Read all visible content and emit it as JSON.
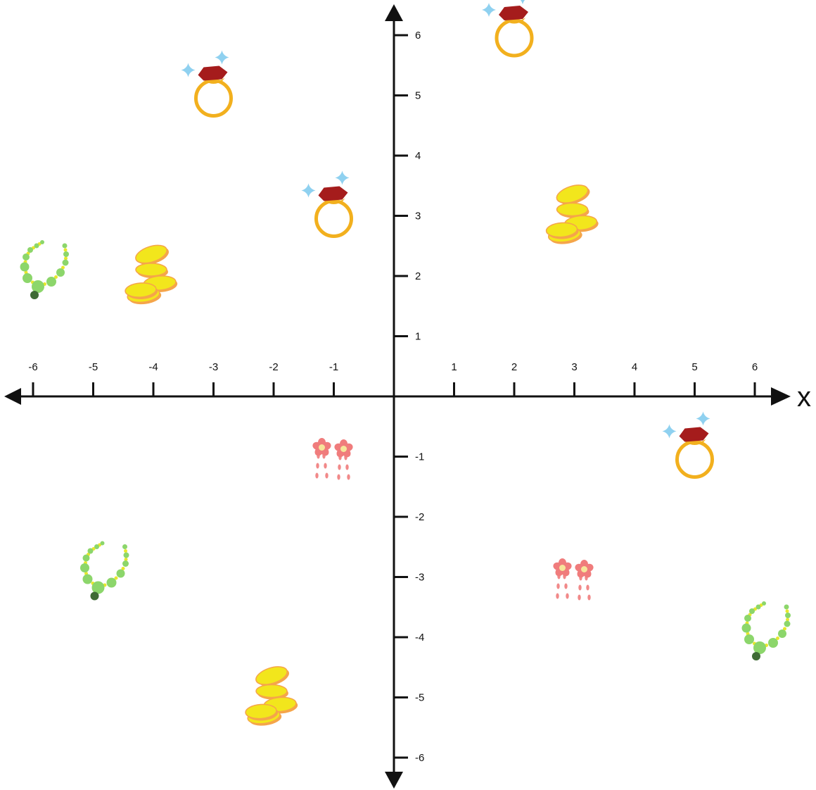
{
  "chart_data": {
    "type": "scatter",
    "xlabel": "x",
    "ylabel": "",
    "xlim": [
      -6,
      6
    ],
    "ylim": [
      -6,
      6
    ],
    "x_ticks": [
      "-6",
      "-5",
      "-4",
      "-3",
      "-2",
      "-1",
      "1",
      "2",
      "3",
      "4",
      "5",
      "6"
    ],
    "y_ticks": [
      "6",
      "5",
      "4",
      "3",
      "2",
      "1",
      "-1",
      "-2",
      "-3",
      "-4",
      "-5",
      "-6"
    ],
    "grid": false,
    "colors": {
      "axis": "#111111",
      "ring_band": "#f2b01e",
      "ring_gem": "#a51c1c",
      "sparkle": "#8fd1f0",
      "coin_fill": "#f2e61c",
      "coin_edge": "#f5a54a",
      "necklace_bead": "#8cd66b",
      "necklace_link": "#e8e82a",
      "necklace_pendant": "#3f6b35",
      "earring": "#f07c7c",
      "earring_center": "#f6e59a"
    },
    "points": [
      {
        "object": "ring",
        "x": -3,
        "y": 5
      },
      {
        "object": "ring",
        "x": -1,
        "y": 3
      },
      {
        "object": "ring",
        "x": 2,
        "y": 6
      },
      {
        "object": "ring",
        "x": 5,
        "y": -1
      },
      {
        "object": "coins",
        "x": -4,
        "y": 2
      },
      {
        "object": "coins",
        "x": 3,
        "y": 3
      },
      {
        "object": "coins",
        "x": -2,
        "y": -5
      },
      {
        "object": "necklace",
        "x": -6,
        "y": 2
      },
      {
        "object": "necklace",
        "x": -5,
        "y": -3
      },
      {
        "object": "necklace",
        "x": 6,
        "y": -4
      },
      {
        "object": "earrings",
        "x": -1,
        "y": -1
      },
      {
        "object": "earrings",
        "x": 3,
        "y": -3
      }
    ]
  }
}
